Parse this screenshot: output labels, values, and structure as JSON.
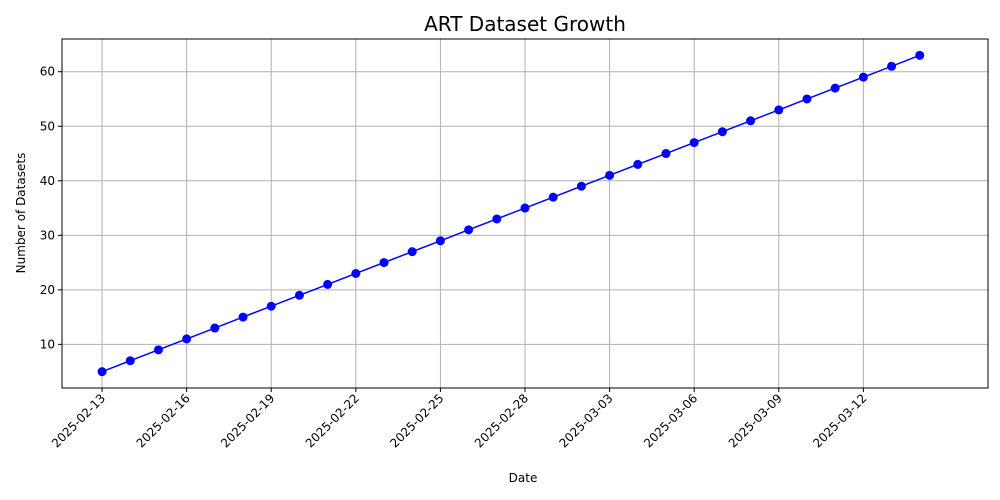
{
  "chart_data": {
    "type": "line",
    "title": "ART Dataset Growth",
    "xlabel": "Date",
    "ylabel": "Number of Datasets",
    "grid": true,
    "line_color": "#0000ff",
    "marker_color": "#0000ff",
    "x_ticks": [
      "2025-02-13",
      "2025-02-16",
      "2025-02-19",
      "2025-02-22",
      "2025-02-25",
      "2025-02-28",
      "2025-03-03",
      "2025-03-06",
      "2025-03-09",
      "2025-03-12"
    ],
    "y_ticks": [
      10,
      20,
      30,
      40,
      50,
      60
    ],
    "ylim": [
      2,
      66
    ],
    "xlim": [
      "2025-02-11T13:55",
      "2025-03-16T10:05"
    ],
    "series": [
      {
        "x": [
          "2025-02-13",
          "2025-02-14",
          "2025-02-15",
          "2025-02-16",
          "2025-02-17",
          "2025-02-18",
          "2025-02-19",
          "2025-02-20",
          "2025-02-21",
          "2025-02-22",
          "2025-02-23",
          "2025-02-24",
          "2025-02-25",
          "2025-02-26",
          "2025-02-27",
          "2025-02-28",
          "2025-03-01",
          "2025-03-02",
          "2025-03-03",
          "2025-03-04",
          "2025-03-05",
          "2025-03-06",
          "2025-03-07",
          "2025-03-08",
          "2025-03-09",
          "2025-03-10",
          "2025-03-11",
          "2025-03-12",
          "2025-03-13",
          "2025-03-14"
        ],
        "values": [
          5,
          7,
          9,
          11,
          13,
          15,
          17,
          19,
          21,
          23,
          25,
          27,
          29,
          31,
          33,
          35,
          37,
          39,
          41,
          43,
          45,
          47,
          49,
          51,
          53,
          55,
          57,
          59,
          61,
          63
        ]
      }
    ]
  }
}
